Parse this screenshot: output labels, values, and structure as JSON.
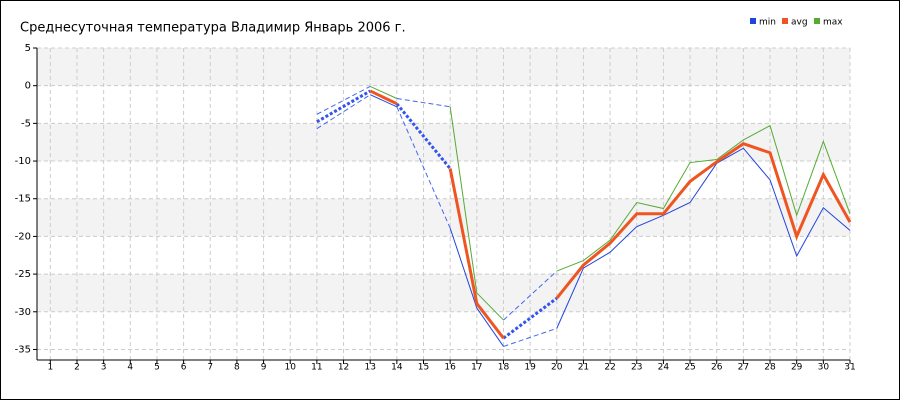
{
  "chart_data": {
    "type": "line",
    "title": "Среднесуточная температура Владимир  Январь 2006 г.",
    "x": [
      1,
      2,
      3,
      4,
      5,
      6,
      7,
      8,
      9,
      10,
      11,
      12,
      13,
      14,
      15,
      16,
      17,
      18,
      19,
      20,
      21,
      22,
      23,
      24,
      25,
      26,
      27,
      28,
      29,
      30,
      31
    ],
    "xlim": [
      0.5,
      31
    ],
    "xticks": [
      1,
      2,
      3,
      4,
      5,
      6,
      7,
      8,
      9,
      10,
      11,
      12,
      13,
      14,
      15,
      16,
      17,
      18,
      19,
      20,
      21,
      22,
      23,
      24,
      25,
      26,
      27,
      28,
      29,
      30,
      31
    ],
    "ylim": [
      -36,
      5
    ],
    "yticks": [
      5,
      0,
      -5,
      -10,
      -15,
      -20,
      -25,
      -30,
      -35
    ],
    "grid": true,
    "legend": "top-right",
    "series": [
      {
        "name": "min",
        "color": "#2244dd",
        "values": [
          null,
          null,
          null,
          null,
          null,
          null,
          null,
          null,
          null,
          null,
          -5.7,
          null,
          -1.2,
          -2.8,
          null,
          -18.9,
          -29.5,
          -34.6,
          null,
          -32.2,
          -24.2,
          -22.1,
          -18.7,
          -17.2,
          -15.5,
          -10.3,
          -8.3,
          -12.5,
          -22.6,
          -16.2,
          -19.2
        ]
      },
      {
        "name": "avg",
        "color": "#ee5522",
        "values": [
          null,
          null,
          null,
          null,
          null,
          null,
          null,
          null,
          null,
          null,
          -4.8,
          null,
          -0.7,
          -2.4,
          null,
          -11,
          -28.9,
          -33.5,
          null,
          -28.2,
          -23.8,
          -20.9,
          -17,
          -17,
          -12.7,
          -10.1,
          -7.7,
          -8.9,
          -20,
          -11.8,
          -18.1
        ]
      },
      {
        "name": "max",
        "color": "#55aa33",
        "values": [
          null,
          null,
          null,
          null,
          null,
          null,
          null,
          null,
          null,
          null,
          -3.8,
          null,
          -0.1,
          -1.7,
          null,
          -2.8,
          -27.5,
          -31.1,
          null,
          -24.6,
          -23.2,
          -20.5,
          -15.5,
          -16.3,
          -10.2,
          -9.8,
          -7.2,
          -5.3,
          -17.2,
          -7.4,
          -17
        ]
      }
    ]
  }
}
